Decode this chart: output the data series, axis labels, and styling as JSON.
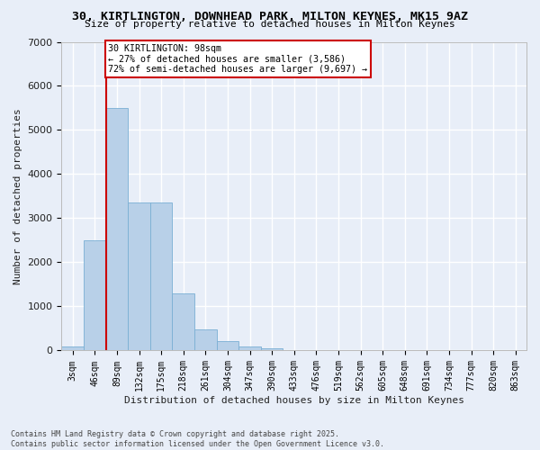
{
  "title": "30, KIRTLINGTON, DOWNHEAD PARK, MILTON KEYNES, MK15 9AZ",
  "subtitle": "Size of property relative to detached houses in Milton Keynes",
  "xlabel": "Distribution of detached houses by size in Milton Keynes",
  "ylabel": "Number of detached properties",
  "bar_color": "#b8d0e8",
  "bar_edge_color": "#7aafd4",
  "background_color": "#e8eef8",
  "grid_color": "#ffffff",
  "categories": [
    "3sqm",
    "46sqm",
    "89sqm",
    "132sqm",
    "175sqm",
    "218sqm",
    "261sqm",
    "304sqm",
    "347sqm",
    "390sqm",
    "433sqm",
    "476sqm",
    "519sqm",
    "562sqm",
    "605sqm",
    "648sqm",
    "691sqm",
    "734sqm",
    "777sqm",
    "820sqm",
    "863sqm"
  ],
  "values": [
    100,
    2500,
    5500,
    3350,
    3350,
    1300,
    480,
    220,
    90,
    50,
    0,
    0,
    0,
    0,
    0,
    0,
    0,
    0,
    0,
    0,
    0
  ],
  "ylim": [
    0,
    7000
  ],
  "yticks": [
    0,
    1000,
    2000,
    3000,
    4000,
    5000,
    6000,
    7000
  ],
  "vline_index": 2,
  "annotation_line1": "30 KIRTLINGTON: 98sqm",
  "annotation_line2": "← 27% of detached houses are smaller (3,586)",
  "annotation_line3": "72% of semi-detached houses are larger (9,697) →",
  "annotation_box_color": "#ffffff",
  "annotation_box_edge_color": "#cc0000",
  "vline_color": "#cc0000",
  "footer_line1": "Contains HM Land Registry data © Crown copyright and database right 2025.",
  "footer_line2": "Contains public sector information licensed under the Open Government Licence v3.0."
}
